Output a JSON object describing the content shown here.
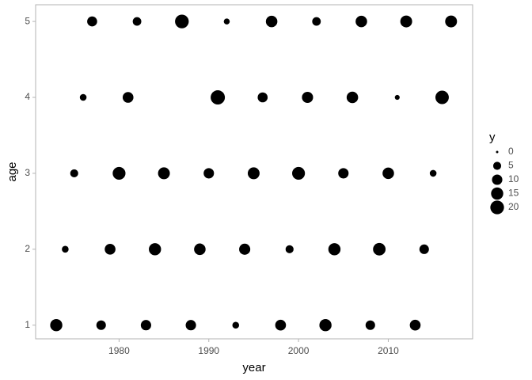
{
  "chart_data": {
    "type": "scatter",
    "xlabel": "year",
    "ylabel": "age",
    "legend_title": "y",
    "color": "#000000",
    "x": [
      1973,
      1978,
      1983,
      1988,
      1993,
      1998,
      2003,
      2008,
      2013,
      1974,
      1979,
      1984,
      1989,
      1994,
      1999,
      2004,
      2009,
      2014,
      1975,
      1980,
      1985,
      1990,
      1995,
      2000,
      2005,
      2010,
      2015,
      1976,
      1981,
      1991,
      1996,
      2001,
      2006,
      2011,
      2016,
      1977,
      1982,
      1987,
      1992,
      1997,
      2002,
      2007,
      2012,
      2017
    ],
    "y": [
      1,
      1,
      1,
      1,
      1,
      1,
      1,
      1,
      1,
      2,
      2,
      2,
      2,
      2,
      2,
      2,
      2,
      2,
      3,
      3,
      3,
      3,
      3,
      3,
      3,
      3,
      3,
      4,
      4,
      4,
      4,
      4,
      4,
      4,
      4,
      5,
      5,
      5,
      5,
      5,
      5,
      5,
      5,
      5
    ],
    "sizes": [
      15,
      8,
      10,
      10,
      3,
      11,
      15,
      8,
      11,
      3,
      11,
      15,
      13,
      12,
      5,
      15,
      16,
      8,
      5,
      17,
      14,
      10,
      14,
      17,
      10,
      13,
      3,
      3,
      11,
      22,
      9,
      12,
      13,
      1,
      19,
      9,
      6,
      20,
      2,
      13,
      6,
      13,
      14,
      14
    ],
    "legend_sizes": [
      0,
      5,
      10,
      15,
      20
    ],
    "xlim": [
      1970.7,
      2019.4
    ],
    "ylim": [
      0.82,
      5.22
    ],
    "xticks": [
      1980,
      1990,
      2000,
      2010
    ],
    "yticks": [
      1,
      2,
      3,
      4,
      5
    ]
  }
}
